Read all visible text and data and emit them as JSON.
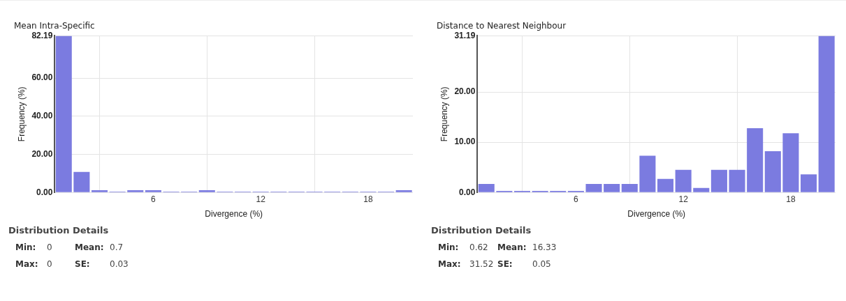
{
  "chart_data": [
    {
      "type": "histogram",
      "title": "Mean Intra-Specific",
      "xlabel": "Divergence (%)",
      "ylabel": "Frequency (%)",
      "color": "#7b7be0",
      "bins": [
        0.5,
        1.5,
        2.5,
        3.5,
        4.5,
        5.5,
        6.5,
        7.5,
        8.5,
        9.5,
        10.5,
        11.5,
        12.5,
        13.5,
        14.5,
        15.5,
        16.5,
        17.5,
        18.5,
        19.5,
        20.5
      ],
      "values": [
        82.19,
        10.8,
        1.2,
        0.4,
        1.2,
        1.2,
        0.4,
        0.4,
        1.2,
        0.4,
        0.4,
        0.4,
        0.4,
        0.4,
        0.4,
        0.4,
        0.4,
        0.4,
        0.4,
        1.2
      ],
      "xlim": [
        0.5,
        20.5
      ],
      "xticks": [
        6,
        12,
        18
      ],
      "ylim": [
        0,
        82.19
      ],
      "yticks": [
        {
          "value": 0,
          "label": "0.00"
        },
        {
          "value": 20,
          "label": "20.00"
        },
        {
          "value": 40,
          "label": "40.00"
        },
        {
          "value": 60,
          "label": "60.00"
        },
        {
          "value": 82.19,
          "label": "82.19"
        }
      ],
      "grid": true,
      "annotations": [
        "Distribution Details",
        "Min:",
        "0",
        "Mean:",
        "0.7",
        "Max:",
        "0",
        "SE:",
        "0.03"
      ]
    },
    {
      "type": "histogram",
      "title": "Distance to Nearest Neighbour",
      "xlabel": "Divergence (%)",
      "ylabel": "Frequency (%)",
      "color": "#7b7be0",
      "bins": [
        0.5,
        1.5,
        2.5,
        3.5,
        4.5,
        5.5,
        6.5,
        7.5,
        8.5,
        9.5,
        10.5,
        11.5,
        12.5,
        13.5,
        14.5,
        15.5,
        16.5,
        17.5,
        18.5,
        19.5,
        20.5
      ],
      "values": [
        1.7,
        0.3,
        0.3,
        0.3,
        0.3,
        0.3,
        1.7,
        1.7,
        1.7,
        7.3,
        2.7,
        4.5,
        0.9,
        4.5,
        4.5,
        12.8,
        8.2,
        11.8,
        3.6,
        31.19
      ],
      "xlim": [
        0.5,
        20.5
      ],
      "xticks": [
        6,
        12,
        18
      ],
      "ylim": [
        0,
        31.19
      ],
      "yticks": [
        {
          "value": 0,
          "label": "0.00"
        },
        {
          "value": 10,
          "label": "10.00"
        },
        {
          "value": 20,
          "label": "20.00"
        },
        {
          "value": 31.19,
          "label": "31.19"
        }
      ],
      "grid": true,
      "annotations": [
        "Distribution Details",
        "Min:",
        "0.62",
        "Mean:",
        "16.33",
        "Max:",
        "31.52",
        "SE:",
        "0.05"
      ]
    }
  ]
}
